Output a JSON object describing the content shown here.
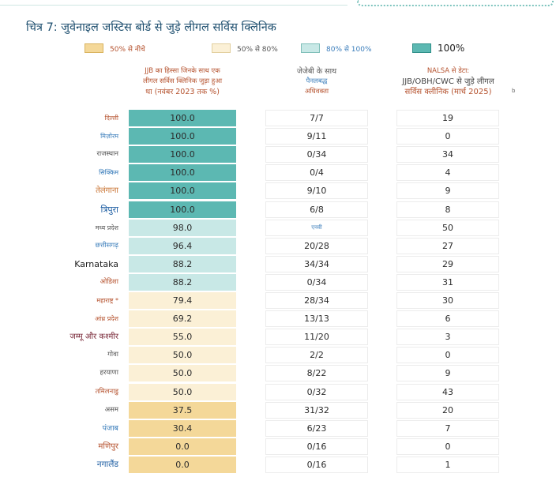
{
  "figure": {
    "title": "चित्र 7: जुवेनाइल जस्टिस बोर्ड से जुड़े लीगल सर्विस क्लिनिक"
  },
  "legend": [
    {
      "label": "50% से नीचे",
      "color": "#f4d899",
      "border": "#d9b35e",
      "label_color": "#b5522e"
    },
    {
      "label": "50% से 80%",
      "color": "#fbf0d6",
      "border": "#e2cf9e",
      "label_color": "#555555"
    },
    {
      "label": "80% से 100%",
      "color": "#c8e8e6",
      "border": "#7fbfb9",
      "label_color": "#3a7dbb"
    },
    {
      "label": "100%",
      "color": "#5cb8b2",
      "border": "#2f8f89",
      "label_color": "#222222"
    }
  ],
  "columns": {
    "c1": {
      "line1": "JJB का हिस्सा जिनके साथ एक",
      "line2": "लीगल सर्विस क्लिनिक जुड़ा हुआ",
      "line3": "था (नवंबर 2023 तक %)"
    },
    "c2": {
      "line1": "जेजेबी के साथ",
      "line2": "पैनलबद्ध",
      "line3": "अधिवक्ता"
    },
    "c3": {
      "line1": "NALSA से डेटा:",
      "line2": "JJB/OBH/CWC से जुड़े लीगल",
      "line3": "सर्विस क्लीनिक (मार्च 2025)",
      "note": "b"
    }
  },
  "rows": [
    {
      "state": "दिल्ली",
      "state_color": "#b5522e",
      "state_size": 8,
      "pct": "100.0",
      "pct_value": 100.0,
      "advocates": "7/7",
      "clinics": "19"
    },
    {
      "state": "मिज़ोरम",
      "state_color": "#3a7dbb",
      "state_size": 8,
      "pct": "100.0",
      "pct_value": 100.0,
      "advocates": "9/11",
      "clinics": "0"
    },
    {
      "state": "राजस्थान",
      "state_color": "#555555",
      "state_size": 8.5,
      "pct": "100.0",
      "pct_value": 100.0,
      "advocates": "0/34",
      "clinics": "34"
    },
    {
      "state": "सिक्किम",
      "state_color": "#3a7dbb",
      "state_size": 8,
      "pct": "100.0",
      "pct_value": 100.0,
      "advocates": "0/4",
      "clinics": "4"
    },
    {
      "state": "तेलंगाना",
      "state_color": "#c8702e",
      "state_size": 10,
      "pct": "100.0",
      "pct_value": 100.0,
      "advocates": "9/10",
      "clinics": "9"
    },
    {
      "state": "त्रिपुरा",
      "state_color": "#1f5fa3",
      "state_size": 11,
      "pct": "100.0",
      "pct_value": 100.0,
      "advocates": "6/8",
      "clinics": "8"
    },
    {
      "state": "मध्य प्रदेश",
      "state_color": "#555555",
      "state_size": 8,
      "pct": "98.0",
      "pct_value": 98.0,
      "advocates": "एनवी",
      "advocates_small": true,
      "clinics": "50"
    },
    {
      "state": "छत्तीसगढ़",
      "state_color": "#3a7dbb",
      "state_size": 8.5,
      "pct": "96.4",
      "pct_value": 96.4,
      "advocates": "20/28",
      "clinics": "27"
    },
    {
      "state": "Karnataka",
      "state_color": "#222222",
      "state_size": 11,
      "pct": "88.2",
      "pct_value": 88.2,
      "advocates": "34/34",
      "clinics": "29"
    },
    {
      "state": "ओडिशा",
      "state_color": "#b5522e",
      "state_size": 8.5,
      "pct": "88.2",
      "pct_value": 88.2,
      "advocates": "0/34",
      "clinics": "31"
    },
    {
      "state": "महाराष्ट्र *",
      "state_color": "#b5522e",
      "state_size": 8,
      "pct": "79.4",
      "pct_value": 79.4,
      "advocates": "28/34",
      "clinics": "30"
    },
    {
      "state": "आंध्र प्रदेश",
      "state_color": "#b5522e",
      "state_size": 8,
      "pct": "69.2",
      "pct_value": 69.2,
      "advocates": "13/13",
      "clinics": "6"
    },
    {
      "state": "जम्मू और कश्मीर",
      "state_color": "#7a2a3a",
      "state_size": 10,
      "pct": "55.0",
      "pct_value": 55.0,
      "advocates": "11/20",
      "clinics": "3"
    },
    {
      "state": "गोवा",
      "state_color": "#555555",
      "state_size": 8.5,
      "pct": "50.0",
      "pct_value": 50.0,
      "advocates": "2/2",
      "clinics": "0"
    },
    {
      "state": "हरयाणा",
      "state_color": "#555555",
      "state_size": 8.5,
      "pct": "50.0",
      "pct_value": 50.0,
      "advocates": "8/22",
      "clinics": "9"
    },
    {
      "state": "तमिलनाडु",
      "state_color": "#b5522e",
      "state_size": 8.5,
      "pct": "50.0",
      "pct_value": 50.0,
      "advocates": "0/32",
      "clinics": "43"
    },
    {
      "state": "असम",
      "state_color": "#555555",
      "state_size": 8.5,
      "pct": "37.5",
      "pct_value": 37.5,
      "advocates": "31/32",
      "clinics": "20"
    },
    {
      "state": "पंजाब",
      "state_color": "#3a7dbb",
      "state_size": 9.5,
      "pct": "30.4",
      "pct_value": 30.4,
      "advocates": "6/23",
      "clinics": "7"
    },
    {
      "state": "मणिपुर",
      "state_color": "#b5522e",
      "state_size": 10,
      "pct": "0.0",
      "pct_value": 0.0,
      "advocates": "0/16",
      "clinics": "0"
    },
    {
      "state": "नगालैंड",
      "state_color": "#1f5fa3",
      "state_size": 10.5,
      "pct": "0.0",
      "pct_value": 0.0,
      "advocates": "0/16",
      "clinics": "1"
    }
  ]
}
